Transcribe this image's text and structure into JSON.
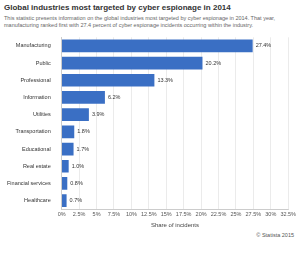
{
  "chart_data": {
    "type": "bar",
    "orientation": "horizontal",
    "title": "Global industries most targeted by cyber espionage in 2014",
    "subtitle": "This statistic presents information on the global industries most targeted by cyber espionage in 2014. That year, manufacturing ranked first with 27.4 percent of cyber espionage incidents occurring within the industry.",
    "x_label": "Share of incidents",
    "annotations": [
      "© Statista 2015"
    ],
    "categories": [
      "Manufacturing",
      "Public",
      "Professional",
      "Information",
      "Utilities",
      "Transportation",
      "Educational",
      "Real estate",
      "Financial services",
      "Healthcare"
    ],
    "values": [
      27.4,
      20.2,
      13.3,
      6.2,
      3.9,
      1.8,
      1.7,
      1.0,
      0.8,
      0.7
    ],
    "value_labels": [
      "27.4%",
      "20.2%",
      "13.3%",
      "6.2%",
      "3.9%",
      "1.8%",
      "1.7%",
      "1.0%",
      "0.8%",
      "0.7%"
    ],
    "data_labels": true,
    "color": "#3a6fc4",
    "xlim": [
      0,
      32.5
    ],
    "xticks": [
      {
        "value": 0,
        "label": "0%"
      },
      {
        "value": 2.5,
        "label": "2.5%"
      },
      {
        "value": 5,
        "label": "5%"
      },
      {
        "value": 7.5,
        "label": "7.5%"
      },
      {
        "value": 10,
        "label": "10%"
      },
      {
        "value": 12.5,
        "label": "12.5%"
      },
      {
        "value": 15,
        "label": "15%"
      },
      {
        "value": 17.5,
        "label": "17.5%"
      },
      {
        "value": 20,
        "label": "20%"
      },
      {
        "value": 22.5,
        "label": "22.5%"
      },
      {
        "value": 25,
        "label": "25%"
      },
      {
        "value": 27.5,
        "label": "27.5%"
      },
      {
        "value": 30,
        "label": "30%"
      },
      {
        "value": 32.5,
        "label": "32.5%"
      }
    ],
    "grid": true
  }
}
